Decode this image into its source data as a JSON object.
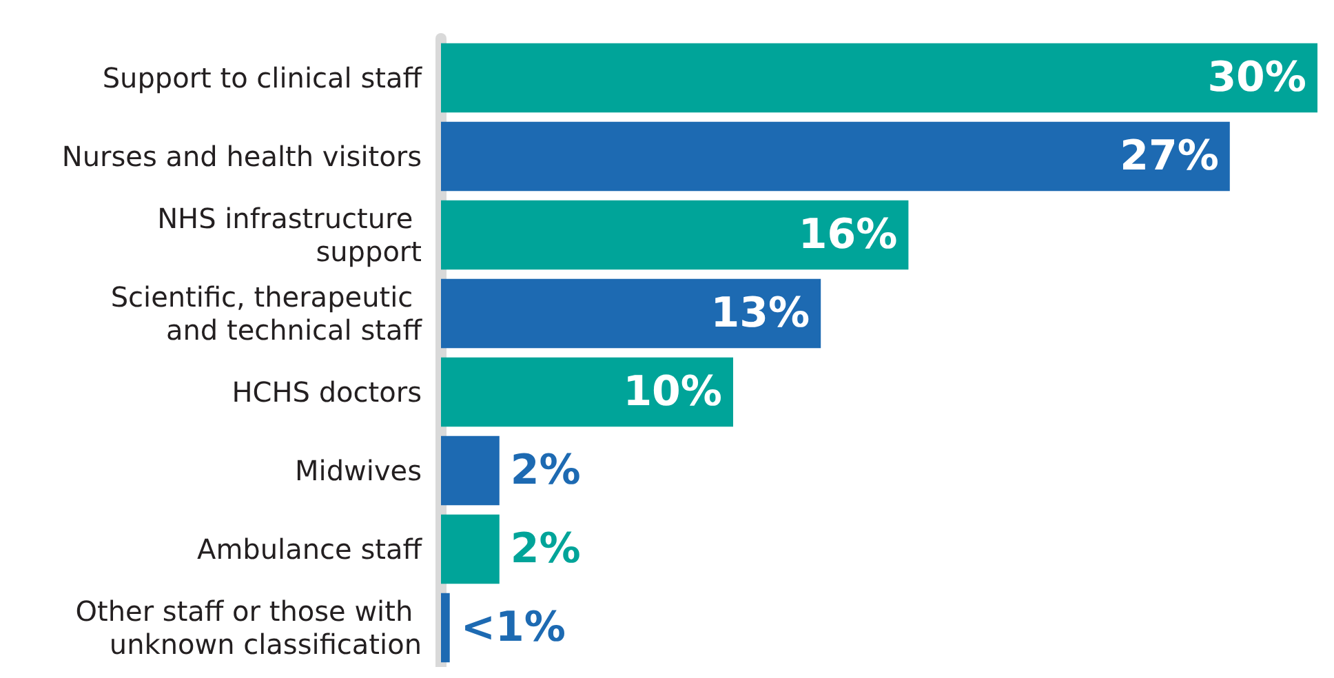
{
  "chart_data": {
    "type": "bar",
    "orientation": "horizontal",
    "categories": [
      "Support to clinical staff",
      "Nurses and health visitors",
      "NHS infrastructure support",
      "Scientific, therapeutic and technical staff",
      "HCHS doctors",
      "Midwives",
      "Ambulance staff",
      "Other staff or those with unknown classification"
    ],
    "values": [
      30,
      27,
      16,
      13,
      10,
      2,
      2,
      0.3
    ],
    "value_labels": [
      "30%",
      "27%",
      "16%",
      "13%",
      "10%",
      "2%",
      "2%",
      "<1%"
    ],
    "colors": [
      "#00a499",
      "#1d6ab2",
      "#00a499",
      "#1d6ab2",
      "#00a499",
      "#1d6ab2",
      "#00a499",
      "#1d6ab2"
    ],
    "xlim": [
      0,
      30
    ]
  }
}
